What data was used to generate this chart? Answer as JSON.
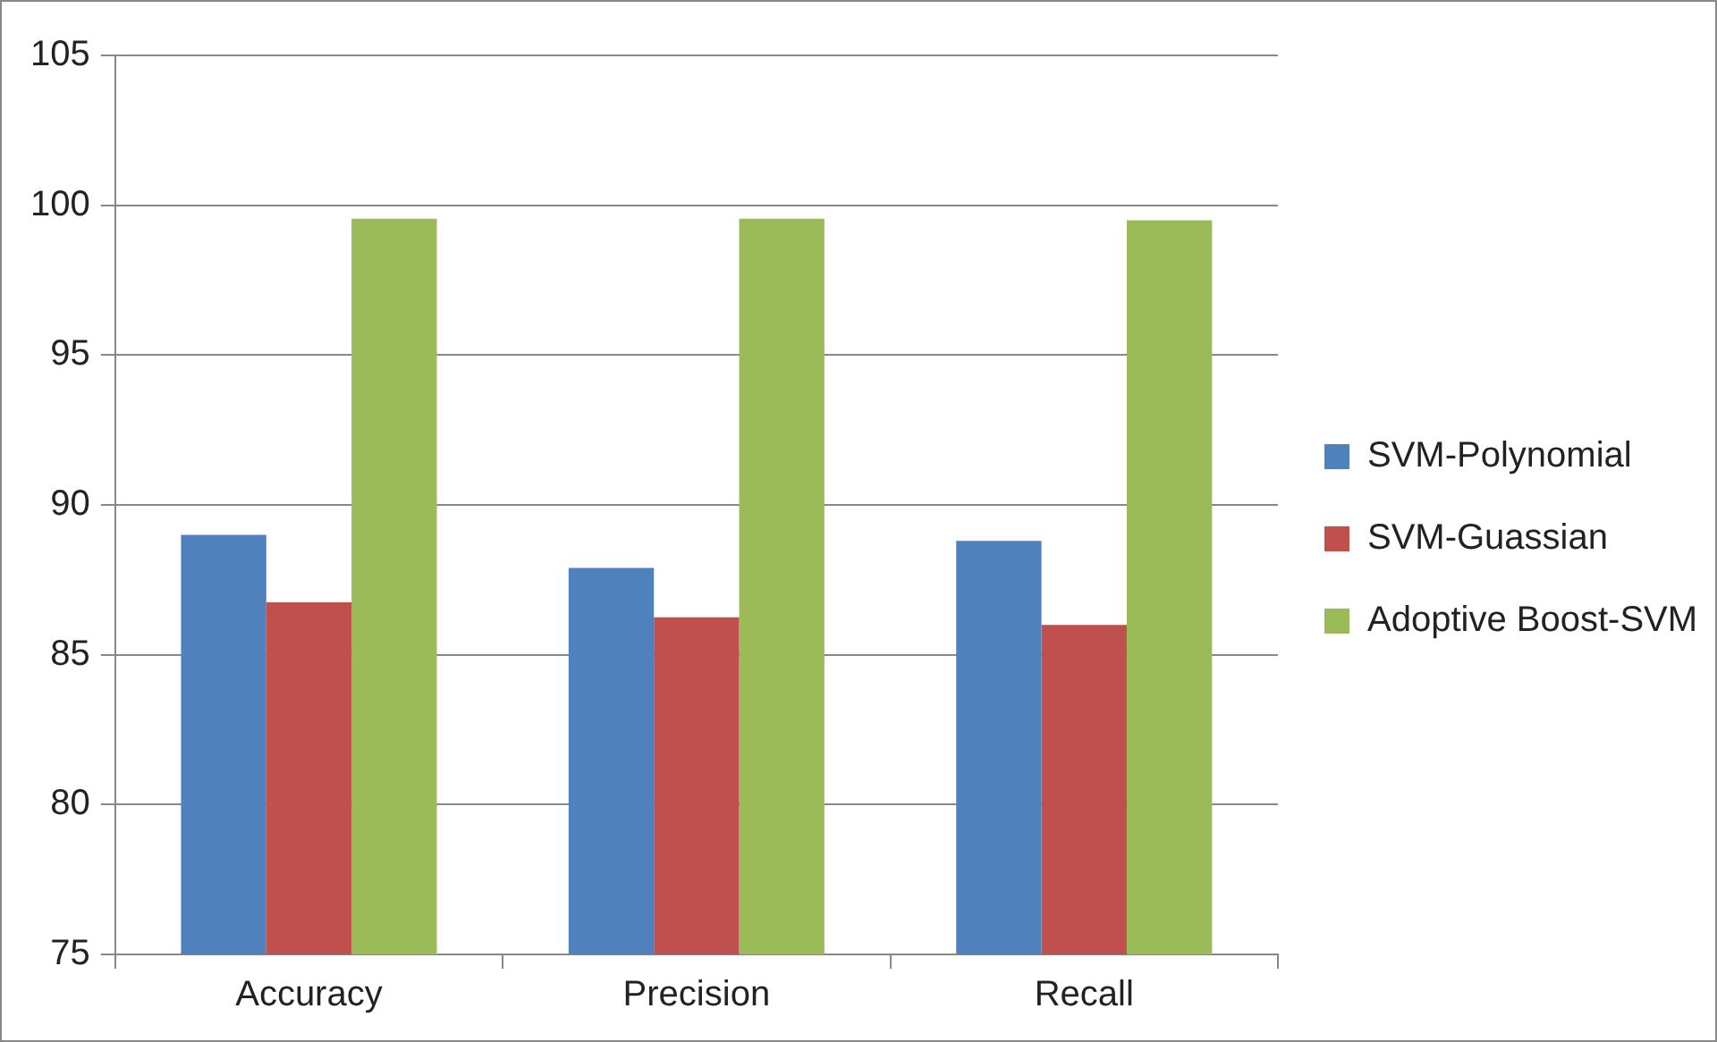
{
  "chart_data": {
    "type": "bar",
    "categories": [
      "Accuracy",
      "Precision",
      "Recall"
    ],
    "series": [
      {
        "name": "SVM-Polynomial",
        "color": "#4f81bd",
        "values": [
          89.0,
          87.9,
          88.8
        ]
      },
      {
        "name": "SVM-Guassian",
        "color": "#c0504d",
        "values": [
          86.75,
          86.25,
          86.0
        ]
      },
      {
        "name": "Adoptive Boost-SVM",
        "color": "#9bbb59",
        "values": [
          99.55,
          99.55,
          99.5
        ]
      }
    ],
    "ylim": [
      75,
      105
    ],
    "yticks": [
      75,
      80,
      85,
      90,
      95,
      100,
      105
    ],
    "grid": "y",
    "legend": "right"
  }
}
